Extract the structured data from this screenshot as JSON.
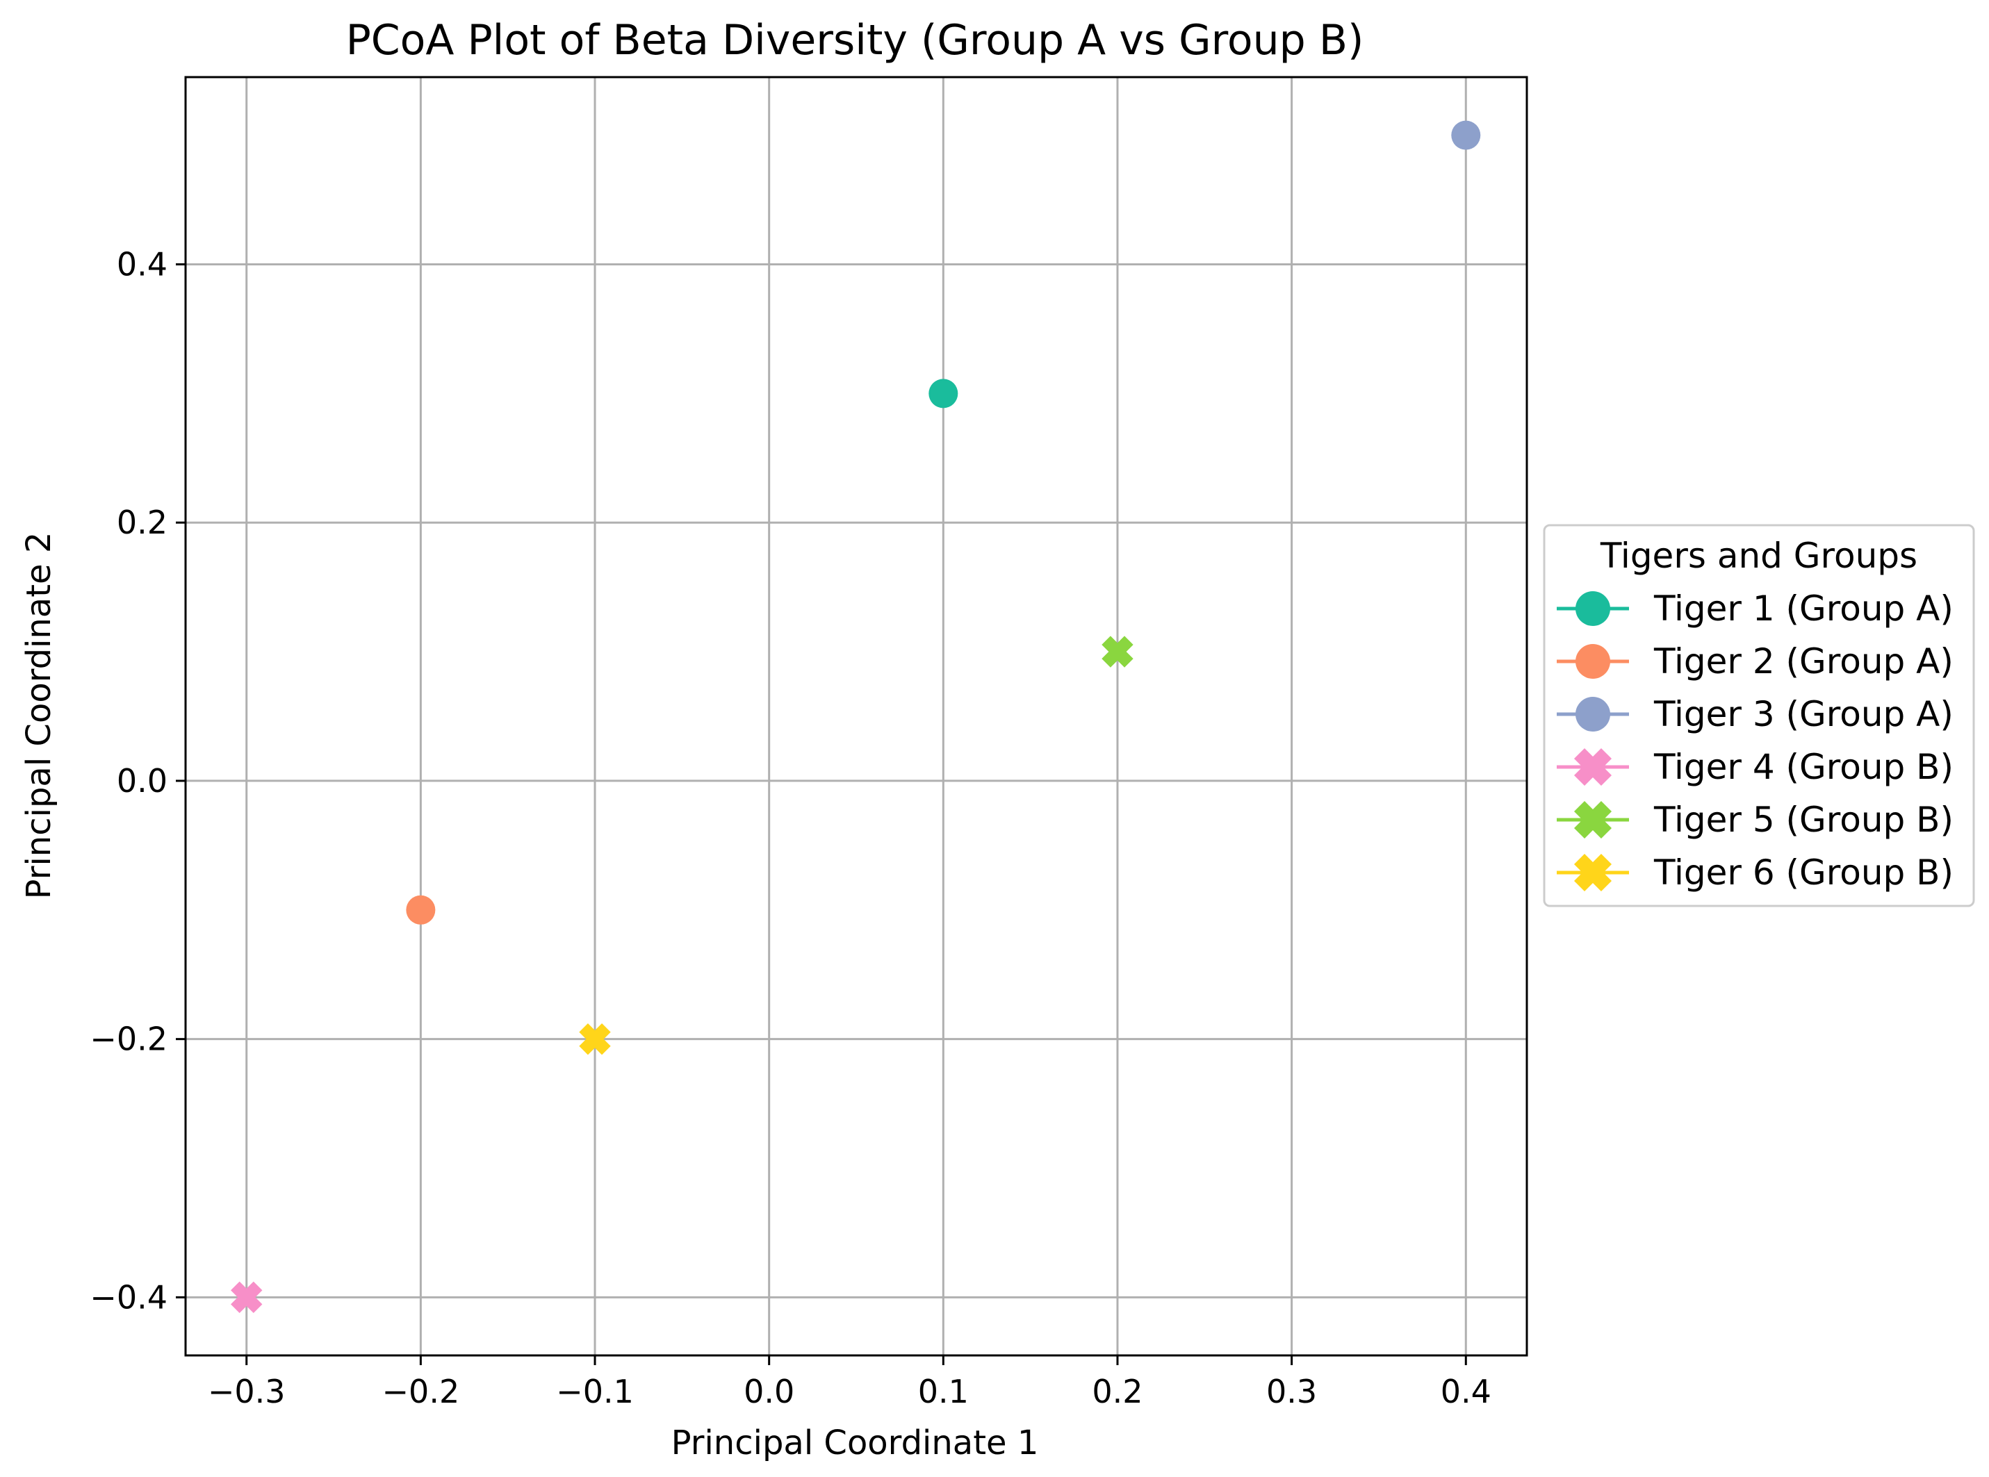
{
  "chart_data": {
    "type": "scatter",
    "title": "PCoA Plot of Beta Diversity (Group A vs Group B)",
    "xlabel": "Principal Coordinate 1",
    "ylabel": "Principal Coordinate 2",
    "xlim": [
      -0.335,
      0.435
    ],
    "ylim": [
      -0.445,
      0.545
    ],
    "xticks": [
      -0.3,
      -0.2,
      -0.1,
      0.0,
      0.1,
      0.2,
      0.3,
      0.4
    ],
    "xtick_labels": [
      "−0.3",
      "−0.2",
      "−0.1",
      "0.0",
      "0.1",
      "0.2",
      "0.3",
      "0.4"
    ],
    "yticks": [
      -0.4,
      -0.2,
      0.0,
      0.2,
      0.4
    ],
    "ytick_labels": [
      "−0.4",
      "−0.2",
      "0.0",
      "0.2",
      "0.4"
    ],
    "grid": true,
    "legend": {
      "title": "Tigers and Groups",
      "placement": "center-left outside right"
    },
    "series": [
      {
        "name": "Tiger 1 (Group A)",
        "group": "A",
        "marker": "circle",
        "color": "#1abc9c",
        "x": 0.1,
        "y": 0.3
      },
      {
        "name": "Tiger 2 (Group A)",
        "group": "A",
        "marker": "circle",
        "color": "#fc8d62",
        "x": -0.2,
        "y": -0.1
      },
      {
        "name": "Tiger 3 (Group A)",
        "group": "A",
        "marker": "circle",
        "color": "#8da0cb",
        "x": 0.4,
        "y": 0.5
      },
      {
        "name": "Tiger 4 (Group B)",
        "group": "B",
        "marker": "x",
        "color": "#f78fc8",
        "x": -0.3,
        "y": -0.4
      },
      {
        "name": "Tiger 5 (Group B)",
        "group": "B",
        "marker": "x",
        "color": "#8ad63f",
        "x": 0.2,
        "y": 0.1
      },
      {
        "name": "Tiger 6 (Group B)",
        "group": "B",
        "marker": "x",
        "color": "#ffd51a",
        "x": -0.1,
        "y": -0.2
      }
    ]
  }
}
